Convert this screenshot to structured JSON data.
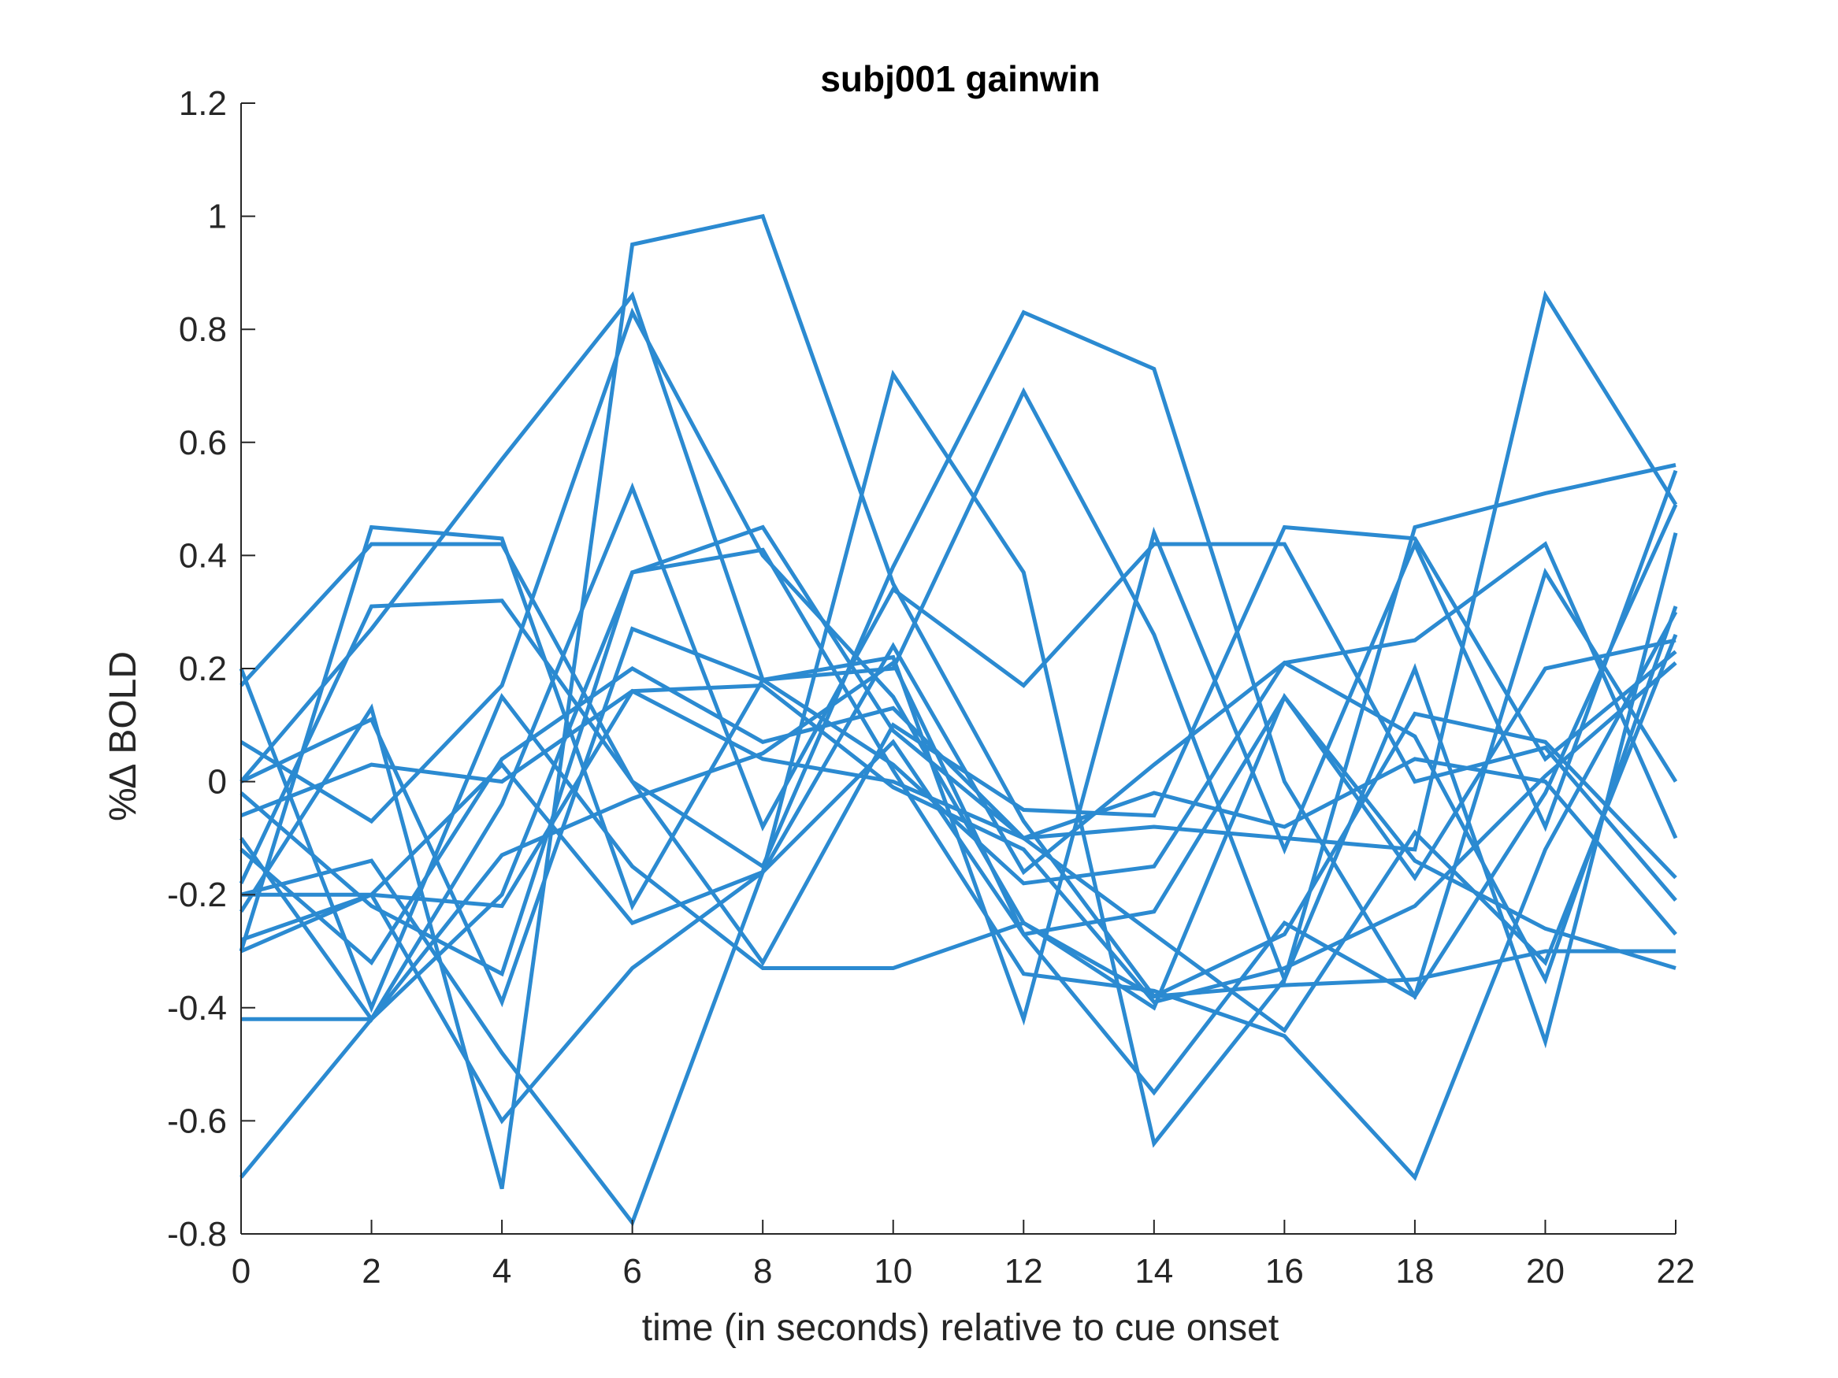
{
  "chart_data": {
    "type": "line",
    "title": "subj001 gainwin",
    "xlabel": "time (in seconds) relative to cue onset",
    "ylabel": "%∆ BOLD",
    "xlim": [
      0,
      22
    ],
    "ylim": [
      -0.8,
      1.2
    ],
    "x_ticks": [
      0,
      2,
      4,
      6,
      8,
      10,
      12,
      14,
      16,
      18,
      20,
      22
    ],
    "y_ticks": [
      -0.8,
      -0.6,
      -0.4,
      -0.2,
      0,
      0.2,
      0.4,
      0.6,
      0.8,
      1,
      1.2
    ],
    "grid": false,
    "legend": false,
    "line_color": "#2b8ad1",
    "x": [
      0,
      2,
      4,
      6,
      8,
      10,
      12,
      14,
      16,
      18,
      20,
      22
    ],
    "series": [
      {
        "values": [
          0.2,
          -0.4,
          0.15,
          -0.15,
          -0.33,
          -0.33,
          -0.25,
          -0.38,
          -0.36,
          -0.35,
          -0.3,
          -0.3
        ]
      },
      {
        "values": [
          0.17,
          0.42,
          0.42,
          0.0,
          -0.15,
          0.38,
          0.83,
          0.73,
          0.0,
          -0.38,
          -0.02,
          0.49
        ]
      },
      {
        "values": [
          -0.3,
          0.45,
          0.43,
          -0.22,
          0.18,
          0.22,
          -0.42,
          0.44,
          -0.12,
          0.42,
          -0.08,
          0.55
        ]
      },
      {
        "values": [
          -0.7,
          -0.42,
          -0.13,
          -0.03,
          0.05,
          0.21,
          -0.27,
          -0.55,
          -0.25,
          -0.38,
          0.37,
          0.0
        ]
      },
      {
        "values": [
          -0.42,
          -0.42,
          -0.2,
          0.37,
          0.41,
          0.02,
          -0.34,
          -0.37,
          -0.45,
          -0.7,
          -0.12,
          0.3
        ]
      },
      {
        "values": [
          0.0,
          0.27,
          0.57,
          0.86,
          0.18,
          0.2,
          0.69,
          0.26,
          -0.35,
          0.45,
          0.51,
          0.56
        ]
      },
      {
        "values": [
          -0.28,
          -0.2,
          -0.6,
          -0.33,
          -0.16,
          0.72,
          0.37,
          -0.64,
          -0.35,
          0.2,
          -0.46,
          0.44
        ]
      },
      {
        "values": [
          -0.23,
          0.13,
          -0.72,
          0.95,
          1.0,
          0.35,
          -0.07,
          -0.38,
          -0.27,
          0.12,
          0.07,
          -0.17
        ]
      },
      {
        "values": [
          -0.12,
          -0.32,
          0.04,
          0.2,
          0.07,
          0.13,
          -0.1,
          -0.08,
          -0.1,
          -0.12,
          0.86,
          0.49
        ]
      },
      {
        "values": [
          -0.1,
          -0.42,
          -0.04,
          0.52,
          -0.08,
          0.34,
          0.17,
          0.42,
          0.42,
          0.0,
          0.06,
          -0.21
        ]
      },
      {
        "values": [
          -0.18,
          0.31,
          0.32,
          0.0,
          -0.32,
          0.1,
          -0.05,
          -0.06,
          0.45,
          0.43,
          0.04,
          0.23
        ]
      },
      {
        "values": [
          0.07,
          -0.07,
          0.17,
          0.83,
          0.4,
          0.15,
          -0.25,
          -0.4,
          0.15,
          -0.14,
          -0.26,
          -0.33
        ]
      },
      {
        "values": [
          -0.02,
          -0.22,
          -0.34,
          0.37,
          0.45,
          0.09,
          -0.1,
          -0.02,
          -0.08,
          0.04,
          0.0,
          -0.27
        ]
      },
      {
        "values": [
          0.0,
          0.11,
          -0.39,
          0.27,
          0.18,
          0.03,
          -0.18,
          -0.15,
          0.21,
          0.25,
          0.42,
          -0.1
        ]
      },
      {
        "values": [
          -0.2,
          -0.14,
          -0.48,
          -0.78,
          -0.16,
          0.24,
          -0.16,
          0.03,
          0.21,
          0.08,
          -0.35,
          0.31
        ]
      },
      {
        "values": [
          -0.3,
          -0.2,
          0.03,
          -0.25,
          -0.16,
          0.07,
          -0.27,
          -0.23,
          0.15,
          -0.17,
          0.2,
          0.25
        ]
      },
      {
        "values": [
          -0.06,
          0.03,
          0.0,
          0.16,
          0.04,
          0.0,
          -0.1,
          -0.27,
          -0.44,
          -0.09,
          -0.32,
          0.26
        ]
      },
      {
        "values": [
          -0.2,
          -0.2,
          -0.22,
          0.16,
          0.17,
          -0.01,
          -0.12,
          -0.39,
          -0.33,
          -0.22,
          0.01,
          0.21
        ]
      }
    ]
  }
}
